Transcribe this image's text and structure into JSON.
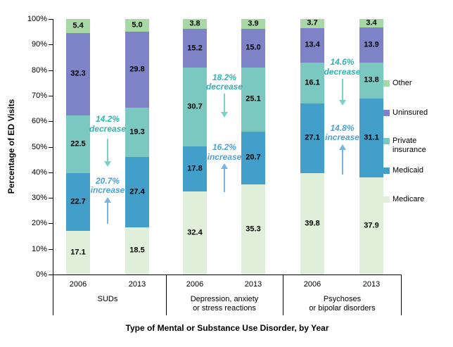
{
  "chart_data": {
    "type": "bar",
    "subtype": "100-percent-stacked-column",
    "title": "",
    "xlabel": "Type of Mental or Substance Use Disorder, by Year",
    "ylabel": "Percentage of ED Visits",
    "ylim": [
      0,
      100
    ],
    "ytick_step": 10,
    "ytick_labels": [
      "0%",
      "10%",
      "20%",
      "30%",
      "40%",
      "50%",
      "60%",
      "70%",
      "80%",
      "90%",
      "100%"
    ],
    "grid": false,
    "legend_position": "right",
    "x_categories": [
      "2006",
      "2013",
      "2006",
      "2013",
      "2006",
      "2013"
    ],
    "groups": [
      {
        "label": "SUDs",
        "label_lines": [
          "SUDs"
        ],
        "bar_indexes": [
          0,
          1
        ]
      },
      {
        "label": "Depression, anxiety or stress reactions",
        "label_lines": [
          "Depression, anxiety",
          "or stress reactions"
        ],
        "bar_indexes": [
          2,
          3
        ]
      },
      {
        "label": "Psychoses or bipolar disorders",
        "label_lines": [
          "Psychoses",
          "or bipolar disorders"
        ],
        "bar_indexes": [
          4,
          5
        ]
      }
    ],
    "series": [
      {
        "name": "Medicare",
        "color": "#dfefd9",
        "values": [
          17.1,
          18.5,
          32.4,
          35.3,
          39.8,
          37.9
        ]
      },
      {
        "name": "Medicaid",
        "color": "#419fc9",
        "values": [
          22.7,
          27.4,
          17.8,
          20.7,
          27.1,
          31.1
        ]
      },
      {
        "name": "Private insurance",
        "color": "#7bc8c0",
        "values": [
          22.5,
          19.3,
          30.7,
          25.1,
          16.1,
          13.8
        ]
      },
      {
        "name": "Uninsured",
        "color": "#7e83c7",
        "values": [
          32.3,
          29.8,
          15.2,
          15.0,
          13.4,
          13.9
        ]
      },
      {
        "name": "Other",
        "color": "#a8d8a5",
        "values": [
          5.4,
          5.0,
          3.8,
          3.9,
          3.7,
          3.4
        ]
      }
    ],
    "legend_items": [
      {
        "label": "Other",
        "label_lines": [
          "Other"
        ],
        "color": "#a8d8a5"
      },
      {
        "label": "Uninsured",
        "label_lines": [
          "Uninsured"
        ],
        "color": "#7e83c7"
      },
      {
        "label": "Private insurance",
        "label_lines": [
          "Private",
          "insurance"
        ],
        "color": "#7bc8c0"
      },
      {
        "label": "Medicaid",
        "label_lines": [
          "Medicaid"
        ],
        "color": "#419fc9"
      },
      {
        "label": "Medicare",
        "label_lines": [
          "Medicare"
        ],
        "color": "#dfefd9"
      }
    ],
    "annotations": [
      {
        "group": 0,
        "text": "14.2% decrease",
        "lines": [
          "14.2%",
          "decrease"
        ],
        "direction": "down",
        "text_color": "#2fb5ad",
        "arrow_color": "#7dd2c8",
        "text_top_pct": 62.5,
        "arrow_start_pct": 53.2,
        "arrow_end_pct": 42.1
      },
      {
        "group": 0,
        "text": "20.7% increase",
        "lines": [
          "20.7%",
          "increase"
        ],
        "direction": "up",
        "text_color": "#4ba2da",
        "arrow_color": "#7cb5e1",
        "text_top_pct": 38.3,
        "arrow_start_pct": 19.8,
        "arrow_end_pct": 30.3
      },
      {
        "group": 1,
        "text": "18.2% decrease",
        "lines": [
          "18.2%",
          "decrease"
        ],
        "direction": "down",
        "text_color": "#2fb5ad",
        "arrow_color": "#7dd2c8",
        "text_top_pct": 78.8,
        "arrow_start_pct": 70.8,
        "arrow_end_pct": 61.4
      },
      {
        "group": 1,
        "text": "16.2% increase",
        "lines": [
          "16.2%",
          "increase"
        ],
        "direction": "up",
        "text_color": "#4ba2da",
        "arrow_color": "#7cb5e1",
        "text_top_pct": 51.5,
        "arrow_start_pct": 32.2,
        "arrow_end_pct": 43.5
      },
      {
        "group": 2,
        "text": "14.6% decrease",
        "lines": [
          "14.6%",
          "decrease"
        ],
        "direction": "down",
        "text_color": "#2fb5ad",
        "arrow_color": "#7dd2c8",
        "text_top_pct": 84.8,
        "arrow_start_pct": 76.6,
        "arrow_end_pct": 66.1
      },
      {
        "group": 2,
        "text": "14.8% increase",
        "lines": [
          "14.8%",
          "increase"
        ],
        "direction": "up",
        "text_color": "#4ba2da",
        "arrow_color": "#7cb5e1",
        "text_top_pct": 59.0,
        "arrow_start_pct": 39.1,
        "arrow_end_pct": 51.0
      }
    ]
  }
}
